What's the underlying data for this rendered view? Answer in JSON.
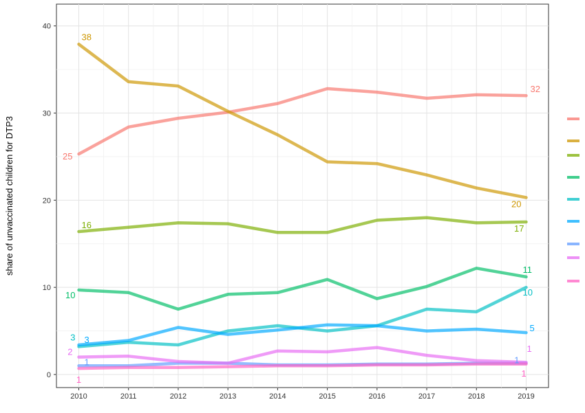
{
  "chart_data": {
    "type": "line",
    "title": "",
    "xlabel": "",
    "ylabel": "share of unvaccinated children for DTP3",
    "x": [
      2010,
      2011,
      2012,
      2013,
      2014,
      2015,
      2016,
      2017,
      2018,
      2019
    ],
    "xlim": [
      2009.55,
      2019.45
    ],
    "ylim": [
      -1.5,
      42.5
    ],
    "y_ticks": [
      0,
      10,
      20,
      30,
      40
    ],
    "grid": true,
    "legend": "right",
    "series": [
      {
        "color": "#F8766D",
        "values": [
          25.3,
          28.4,
          29.4,
          30.1,
          31.1,
          32.8,
          32.4,
          31.7,
          32.1,
          32.0
        ],
        "start_label": "25",
        "end_label": "32"
      },
      {
        "color": "#CD9600",
        "values": [
          37.9,
          33.6,
          33.1,
          30.2,
          27.5,
          24.4,
          24.2,
          22.9,
          21.4,
          20.3
        ],
        "start_label": "38",
        "end_label": "20"
      },
      {
        "color": "#7CAE00",
        "values": [
          16.4,
          16.9,
          17.4,
          17.3,
          16.3,
          16.3,
          17.7,
          18.0,
          17.4,
          17.5
        ],
        "start_label": "16",
        "end_label": "17"
      },
      {
        "color": "#00BE67",
        "values": [
          9.7,
          9.4,
          7.5,
          9.2,
          9.4,
          10.9,
          8.7,
          10.1,
          12.2,
          11.2
        ],
        "start_label": "10",
        "end_label": "11"
      },
      {
        "color": "#00BFC4",
        "values": [
          3.2,
          3.7,
          3.4,
          5.0,
          5.6,
          5.0,
          5.6,
          7.5,
          7.2,
          10.0
        ],
        "start_label": "3",
        "end_label": "10"
      },
      {
        "color": "#00A9FF",
        "values": [
          3.4,
          3.9,
          5.4,
          4.6,
          5.1,
          5.7,
          5.6,
          5.0,
          5.2,
          4.8
        ],
        "start_label": "3",
        "end_label": "5"
      },
      {
        "color": "#619CFF",
        "values": [
          1.0,
          1.0,
          1.3,
          1.3,
          1.1,
          1.1,
          1.2,
          1.2,
          1.3,
          1.3
        ],
        "start_label": "1",
        "end_label": "1"
      },
      {
        "color": "#E76BF3",
        "values": [
          2.0,
          2.1,
          1.5,
          1.3,
          2.7,
          2.6,
          3.1,
          2.2,
          1.6,
          1.4
        ],
        "start_label": "2",
        "end_label": "1"
      },
      {
        "color": "#FF61C3",
        "values": [
          0.7,
          0.8,
          0.8,
          0.9,
          1.0,
          1.0,
          1.1,
          1.1,
          1.2,
          1.2
        ],
        "start_label": "1",
        "end_label": "1"
      }
    ]
  }
}
